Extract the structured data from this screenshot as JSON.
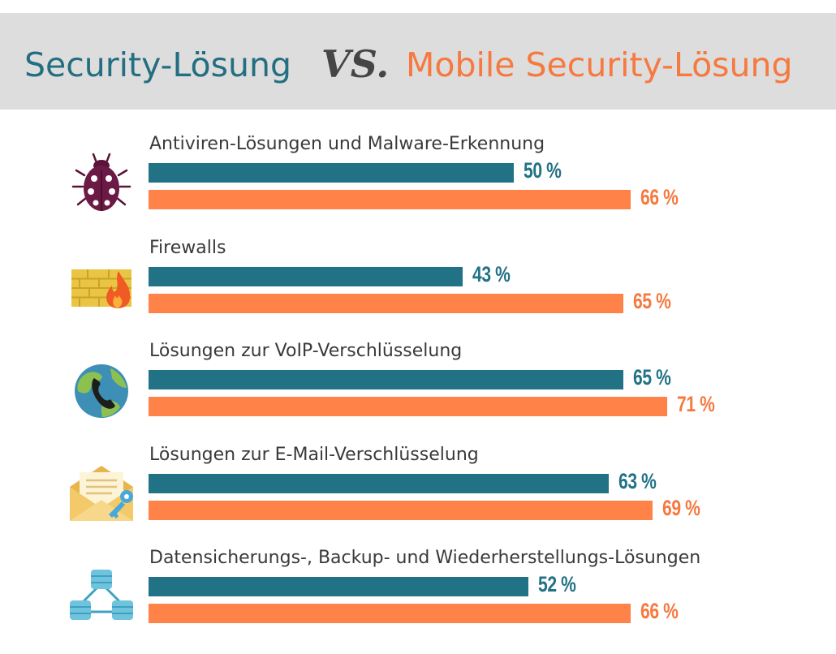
{
  "header": {
    "title_left": "Security-Lösung",
    "vs": "VS.",
    "title_right": "Mobile Security-Lösung",
    "color_left": "#227285",
    "color_right": "#ff8249"
  },
  "chart_data": {
    "type": "bar",
    "orientation": "horizontal",
    "unit": "%",
    "xlim": [
      0,
      100
    ],
    "grid": false,
    "legend": "none",
    "categories": [
      "Antiviren-Lösungen und Malware-Erkennung",
      "Firewalls",
      "Lösungen zur VoIP-Verschlüsselung",
      "Lösungen zur E-Mail-Verschlüsselung",
      "Datensicherungs-, Backup- und Wiederherstellungs-Lösungen"
    ],
    "series": [
      {
        "name": "Security-Lösung",
        "color": "#227285",
        "values": [
          50,
          43,
          65,
          63,
          52
        ],
        "labels": [
          "50 %",
          "43 %",
          "65 %",
          "63 %",
          "52 %"
        ]
      },
      {
        "name": "Mobile Security-Lösung",
        "color": "#ff8249",
        "values": [
          66,
          65,
          71,
          69,
          66
        ],
        "labels": [
          "66 %",
          "65 %",
          "71 %",
          "69 %",
          "66 %"
        ]
      }
    ],
    "icons": [
      "ladybug-icon",
      "firewall-icon",
      "globe-phone-icon",
      "envelope-key-icon",
      "database-network-icon"
    ]
  }
}
